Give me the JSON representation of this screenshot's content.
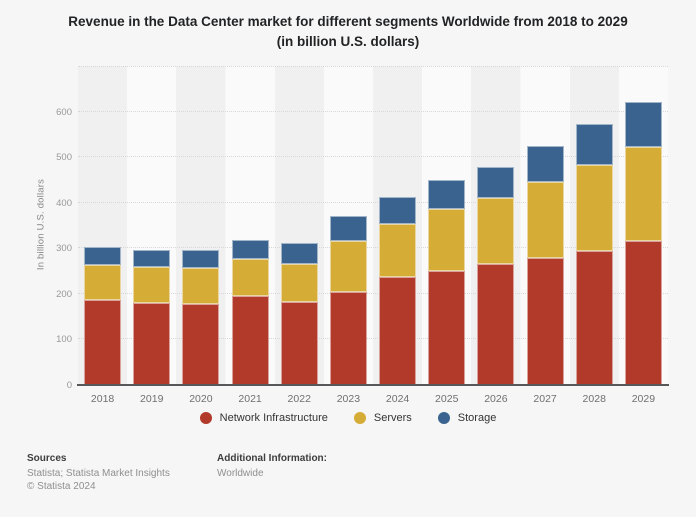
{
  "title": "Revenue in the Data Center market for different segments Worldwide from 2018 to 2029 (in billion U.S. dollars)",
  "y_axis_label": "In billion U.S. dollars",
  "colors": {
    "network_infrastructure": "#b23a2a",
    "servers": "#d5ac35",
    "storage": "#3a648f",
    "band_odd": "#f0f0f1",
    "band_even": "#fafafa"
  },
  "legend": {
    "items": [
      {
        "label": "Network Infrastructure",
        "color": "#b23a2a"
      },
      {
        "label": "Servers",
        "color": "#d5ac35"
      },
      {
        "label": "Storage",
        "color": "#3a648f"
      }
    ]
  },
  "chart_data": {
    "type": "bar",
    "stacked": true,
    "title": "Revenue in the Data Center market for different segments Worldwide from 2018 to 2029 (in billion U.S. dollars)",
    "categories": [
      "2018",
      "2019",
      "2020",
      "2021",
      "2022",
      "2023",
      "2024",
      "2025",
      "2026",
      "2027",
      "2028",
      "2029"
    ],
    "series": [
      {
        "name": "Network Infrastructure",
        "color": "#b23a2a",
        "values": [
          186,
          180,
          177,
          196,
          182,
          205,
          238,
          251,
          266,
          278,
          295,
          315
        ]
      },
      {
        "name": "Servers",
        "color": "#d5ac35",
        "values": [
          78,
          78,
          79,
          81,
          83,
          110,
          115,
          135,
          144,
          167,
          187,
          207
        ]
      },
      {
        "name": "Storage",
        "color": "#3a648f",
        "values": [
          38,
          39,
          40,
          41,
          46,
          55,
          60,
          63,
          68,
          80,
          91,
          100
        ]
      }
    ],
    "totals": [
      302,
      297,
      296,
      318,
      311,
      370,
      413,
      449,
      478,
      525,
      573,
      622
    ],
    "xlabel": "",
    "ylabel": "In billion U.S. dollars",
    "ylim": [
      0,
      700
    ],
    "yticks": [
      0,
      100,
      200,
      300,
      400,
      500,
      600
    ],
    "grid": "horizontal-dotted",
    "legend_position": "bottom",
    "plot_bands_alternating": [
      "#f0f0f1",
      "#fafafa"
    ]
  },
  "footer": {
    "sources_heading": "Sources",
    "sources_line": "Statista; Statista Market Insights",
    "copyright": "© Statista 2024",
    "additional_heading": "Additional Information:",
    "additional_line": "Worldwide"
  }
}
